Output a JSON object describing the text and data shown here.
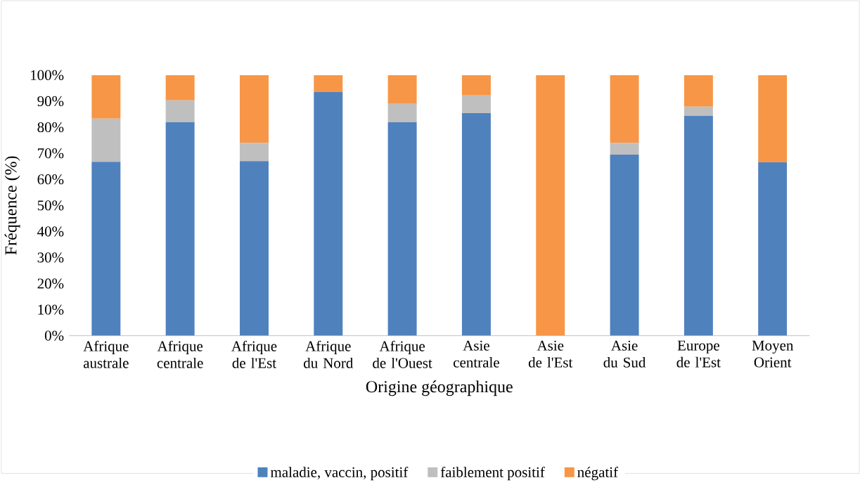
{
  "chart_data": {
    "type": "bar",
    "stacked": true,
    "xlabel": "Origine géographique",
    "ylabel": "Fréquence (%)",
    "categories": [
      "Afrique australe",
      "Afrique centrale",
      "Afrique de l'Est",
      "Afrique du Nord",
      "Afrique de l'Ouest",
      "Asie centrale",
      "Asie de l'Est",
      "Asie du Sud",
      "Europe de l'Est",
      "Moyen Orient"
    ],
    "series": [
      {
        "name": "maladie, vaccin, positif",
        "color": "#4f81bd",
        "values": [
          66.7,
          82,
          67,
          93.5,
          82,
          85.4,
          0,
          69.5,
          84.4,
          66.6
        ]
      },
      {
        "name": "faiblement positif",
        "color": "#bfbfbf",
        "values": [
          16.6,
          8.3,
          7,
          0,
          7,
          6.8,
          0,
          4.5,
          3.5,
          0
        ]
      },
      {
        "name": "négatif",
        "color": "#f79646",
        "values": [
          16.7,
          9.7,
          26,
          6.5,
          11,
          7.8,
          100,
          26,
          12.1,
          33.4
        ]
      }
    ],
    "ylim": [
      0,
      100
    ],
    "yticks": [
      {
        "value": 0,
        "label": "0%"
      },
      {
        "value": 10,
        "label": "10%"
      },
      {
        "value": 20,
        "label": "20%"
      },
      {
        "value": 30,
        "label": "30%"
      },
      {
        "value": 40,
        "label": "40%"
      },
      {
        "value": 50,
        "label": "50%"
      },
      {
        "value": 60,
        "label": "60%"
      },
      {
        "value": 70,
        "label": "70%"
      },
      {
        "value": 80,
        "label": "80%"
      },
      {
        "value": 90,
        "label": "90%"
      },
      {
        "value": 100,
        "label": "100%"
      }
    ],
    "legend": "bottom"
  }
}
